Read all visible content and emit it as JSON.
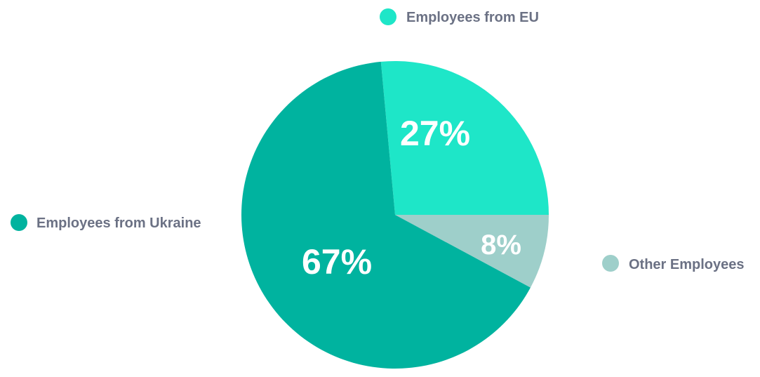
{
  "chart_data": {
    "type": "pie",
    "categories": [
      "Employees from EU",
      "Other Employees",
      "Employees from Ukraine"
    ],
    "values": [
      27,
      8,
      67
    ],
    "labels": [
      "27%",
      "8%",
      "67%"
    ],
    "colors": [
      "#1ee6c8",
      "#9ecfca",
      "#00b39f"
    ],
    "legend": "around-chart"
  }
}
